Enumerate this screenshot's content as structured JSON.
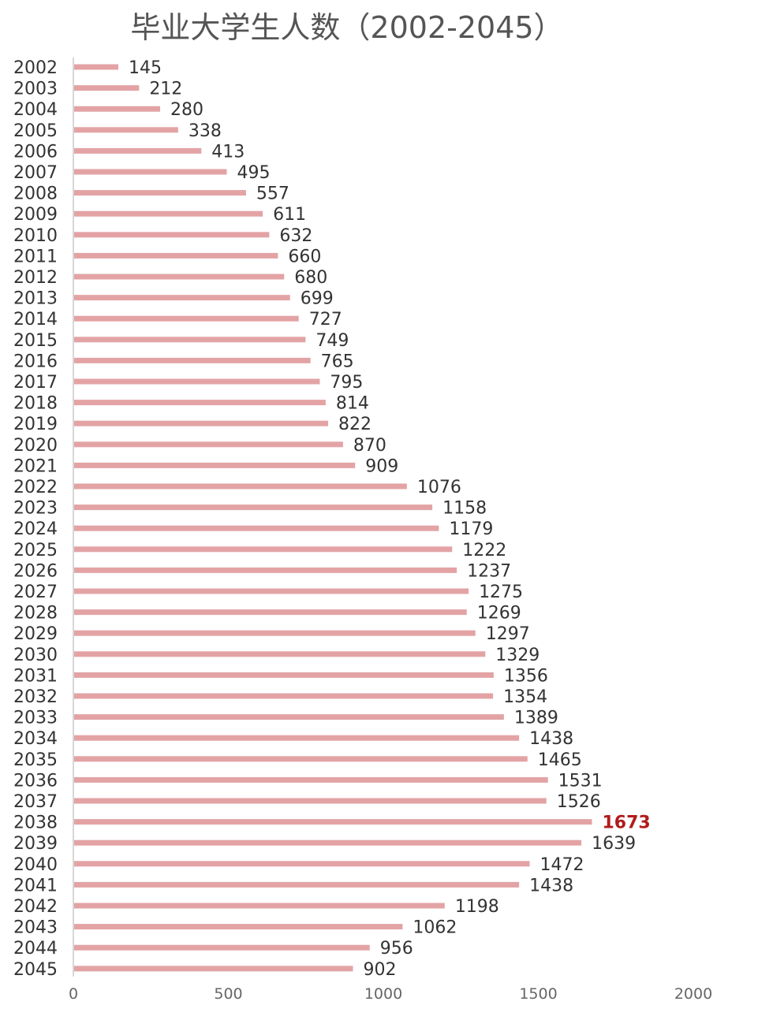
{
  "chart_data": {
    "type": "bar",
    "orientation": "horizontal",
    "title": "毕业大学生人数（2002-2045）",
    "xlabel": "",
    "ylabel": "",
    "xlim": [
      0,
      2000
    ],
    "x_ticks": [
      "0",
      "500",
      "1000",
      "1500",
      "2000"
    ],
    "grid": false,
    "categories": [
      "2002",
      "2003",
      "2004",
      "2005",
      "2006",
      "2007",
      "2008",
      "2009",
      "2010",
      "2011",
      "2012",
      "2013",
      "2014",
      "2015",
      "2016",
      "2017",
      "2018",
      "2019",
      "2020",
      "2021",
      "2022",
      "2023",
      "2024",
      "2025",
      "2026",
      "2027",
      "2028",
      "2029",
      "2030",
      "2031",
      "2032",
      "2033",
      "2034",
      "2035",
      "2036",
      "2037",
      "2038",
      "2039",
      "2040",
      "2041",
      "2042",
      "2043",
      "2044",
      "2045"
    ],
    "values": [
      145,
      212,
      280,
      338,
      413,
      495,
      557,
      611,
      632,
      660,
      680,
      699,
      727,
      749,
      765,
      795,
      814,
      822,
      870,
      909,
      1076,
      1158,
      1179,
      1222,
      1237,
      1275,
      1269,
      1297,
      1329,
      1356,
      1354,
      1389,
      1438,
      1465,
      1531,
      1526,
      1673,
      1639,
      1472,
      1438,
      1198,
      1062,
      956,
      902
    ],
    "highlight_category": "2038",
    "colors": {
      "bar": "#e3a3a5",
      "label": "#333333",
      "highlight_label": "#b01c1c",
      "axis": "#c8c8c8",
      "tick_label": "#666666",
      "title": "#555555"
    }
  }
}
